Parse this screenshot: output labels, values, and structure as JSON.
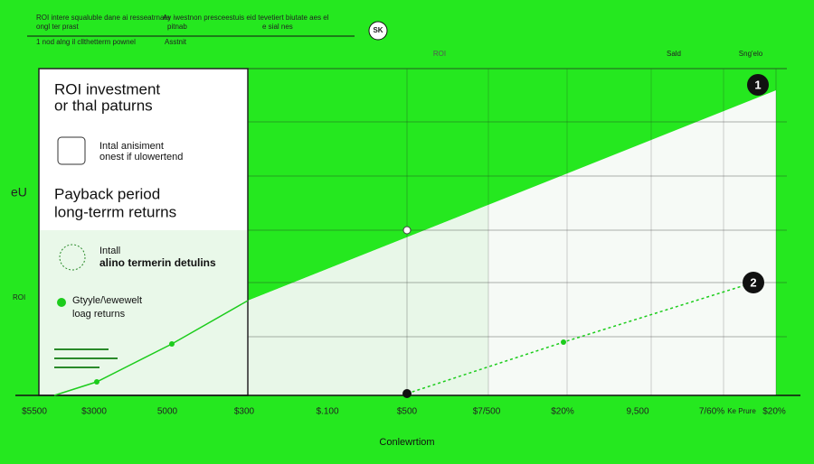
{
  "header": {
    "lines": [
      "ROI intere squaluble dane ai resseatrnata",
      "Ay iwestnon presceestuis eid tevetiert biutate aes el",
      "ongl ter prast",
      "pitnab",
      "e sial nes",
      "1 nod alng il cllthetterm pownel",
      "Asstnit"
    ],
    "badge": "SK"
  },
  "column_headers": [
    "ROI",
    "Sald",
    "Sng'elo"
  ],
  "panel": {
    "title": [
      "ROI investment",
      "or thal paturns"
    ],
    "item1": [
      "Intal anisiment",
      "onest if ulowertend"
    ],
    "heading2": [
      "Payback period",
      "long-terrm returns"
    ],
    "item2": [
      "Intall",
      "alino termerin detulins"
    ],
    "item3": [
      "Gtyyle/\\ewewelt",
      "loag returns"
    ]
  },
  "side_label": "eU",
  "side_label2": "ROI",
  "x_labels": [
    "$5500",
    "$3000",
    "5000",
    "$300",
    "$.100",
    "$500",
    "$7/500",
    "$20%",
    "9,500",
    "7/60%",
    "Ke Prure",
    "$20%"
  ],
  "x_title": "Conlewrtiom",
  "markers": [
    "1",
    "2"
  ]
}
